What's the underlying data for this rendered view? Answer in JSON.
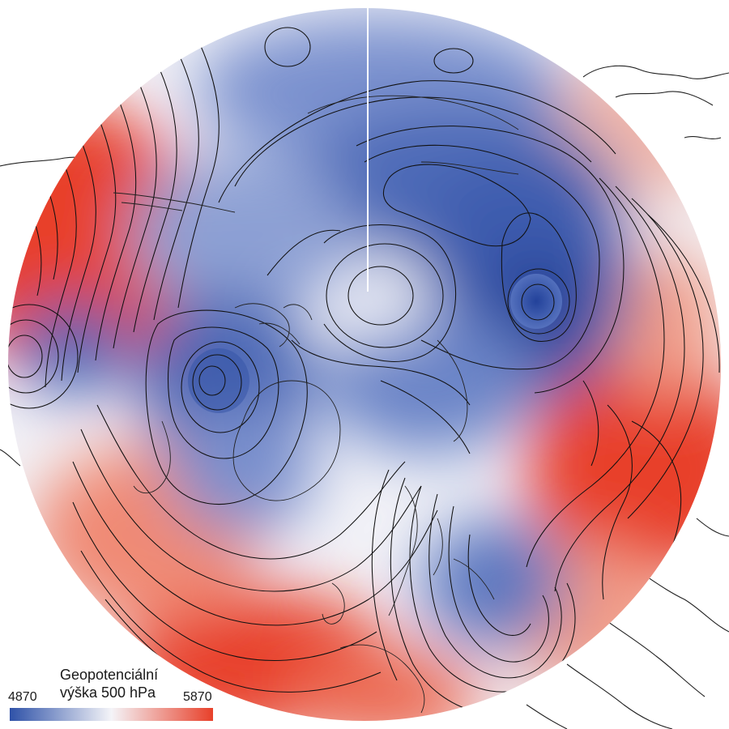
{
  "legend": {
    "title_line1": "Geopotenciální",
    "title_line2": "výška 500 hPa",
    "min_label": "4870",
    "max_label": "5870",
    "min_value": 4870,
    "max_value": 5870
  },
  "colors": {
    "low": "#2f52a8",
    "mid": "#f4f4f8",
    "high": "#e8402a",
    "contour": "#111111",
    "coast": "#222222",
    "background": "#ffffff"
  },
  "map": {
    "projection": "polar-stereographic",
    "hemisphere": "northern",
    "variable": "geopotential-height-500hPa"
  }
}
